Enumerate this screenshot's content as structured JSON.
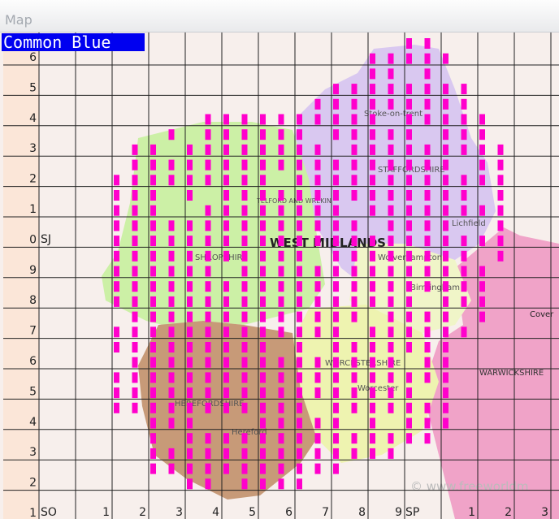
{
  "window": {
    "title": "Map"
  },
  "species": "Common Blue",
  "grid": {
    "row_labels": [
      "6",
      "5",
      "4",
      "3",
      "2",
      "1",
      "0",
      "9",
      "8",
      "7",
      "6",
      "5",
      "4",
      "3",
      "2",
      "1"
    ],
    "square_labels": {
      "upper_left": "SJ",
      "lower_left": "SO",
      "lower_right": "SP"
    },
    "column_labels": [
      "1",
      "2",
      "3",
      "4",
      "5",
      "6",
      "7",
      "8",
      "9",
      "1",
      "2",
      "3"
    ]
  },
  "map_labels": {
    "stoke": "Stoke-on-trent",
    "staffordshire": "STAFFORDSHIRE",
    "telford": "TELFORD AND WREKIN",
    "west_midlands": "WEST MIDLANDS",
    "shropshire": "SHROPSHIRE",
    "wolverhampton": "Wolverhampton",
    "birmingham": "Birmingham",
    "lichfield": "Lichfield",
    "coventry": "Cover",
    "warwickshire": "WARWICKSHIRE",
    "worcestershire": "WORCESTERSHIRE",
    "worcester": "Worcester",
    "herefordshire": "HEREFORDSHIRE",
    "hereford": "Hereford",
    "credit": "© www.freeworldm"
  }
}
